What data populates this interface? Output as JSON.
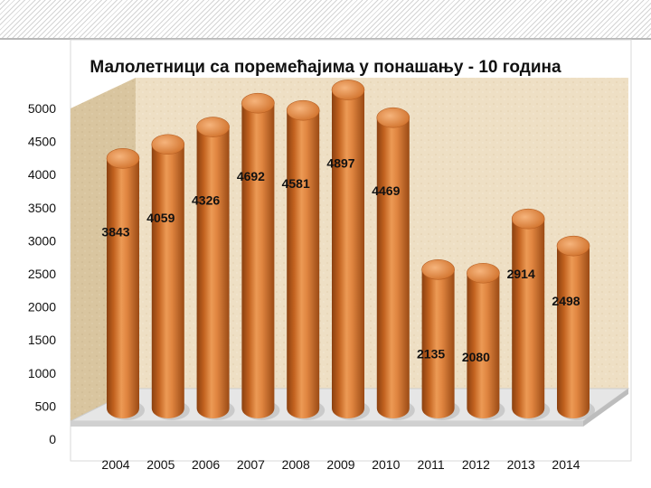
{
  "chart_data": {
    "type": "bar",
    "title": "Малолетници са поремећајима у понашању - 10 година",
    "xlabel": "",
    "ylabel": "",
    "categories": [
      "2004",
      "2005",
      "2006",
      "2007",
      "2008",
      "2009",
      "2010",
      "2011",
      "2012",
      "2013",
      "2014"
    ],
    "values": [
      3843,
      4059,
      4326,
      4692,
      4581,
      4897,
      4469,
      2135,
      2080,
      2914,
      2498
    ],
    "data_labels": [
      "3843",
      "4059",
      "4326",
      "4692",
      "4581",
      "4897",
      "4469",
      "2135",
      "2080",
      "2914",
      "2498"
    ],
    "ylim": [
      0,
      5000
    ],
    "yticks": [
      0,
      500,
      1000,
      1500,
      2000,
      2500,
      3000,
      3500,
      4000,
      4500,
      5000
    ],
    "ytick_labels": [
      "0",
      "500",
      "1000",
      "1500",
      "2000",
      "2500",
      "3000",
      "3500",
      "4000",
      "4500",
      "5000"
    ],
    "grid": false,
    "legend": "none",
    "bar_style": "3d-cylinder",
    "colors": {
      "bar": "#d7772f",
      "bar_dark": "#8a4010",
      "bar_light": "#f4b27a",
      "wall": "#ecdcc0",
      "side_wall": "#d9c6a2",
      "floor": "#e4e4e4"
    }
  }
}
